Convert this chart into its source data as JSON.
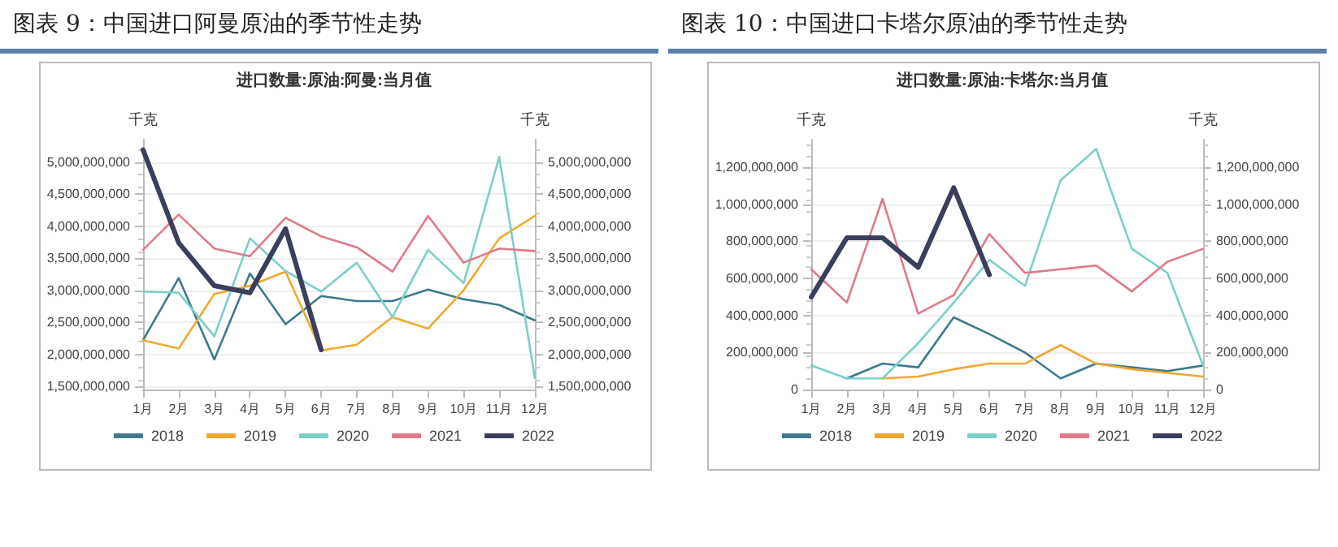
{
  "chart_data": [
    {
      "type": "line",
      "title": "图表 9：中国进口阿曼原油的季节性走势",
      "subtitle": "进口数量:原油:阿曼:当月值",
      "ylabel": "千克",
      "y2label": "千克",
      "categories": [
        "1月",
        "2月",
        "3月",
        "4月",
        "5月",
        "6月",
        "7月",
        "8月",
        "9月",
        "10月",
        "11月",
        "12月"
      ],
      "ylim": [
        1450000000,
        5350000000
      ],
      "yticks": [
        {
          "value": 1500000000,
          "label": "1,500,000,000"
        },
        {
          "value": 2000000000,
          "label": "2,000,000,000"
        },
        {
          "value": 2500000000,
          "label": "2,500,000,000"
        },
        {
          "value": 3000000000,
          "label": "3,000,000,000"
        },
        {
          "value": 3500000000,
          "label": "3,500,000,000"
        },
        {
          "value": 4000000000,
          "label": "4,000,000,000"
        },
        {
          "value": 4500000000,
          "label": "4,500,000,000"
        },
        {
          "value": 5000000000,
          "label": "5,000,000,000"
        }
      ],
      "y2lim": [
        1450000000,
        5350000000
      ],
      "y2ticks": [
        {
          "value": 1500000000,
          "label": "1,500,000,000"
        },
        {
          "value": 2000000000,
          "label": "2,000,000,000"
        },
        {
          "value": 2500000000,
          "label": "2,500,000,000"
        },
        {
          "value": 3000000000,
          "label": "3,000,000,000"
        },
        {
          "value": 3500000000,
          "label": "3,500,000,000"
        },
        {
          "value": 4000000000,
          "label": "4,000,000,000"
        },
        {
          "value": 4500000000,
          "label": "4,500,000,000"
        },
        {
          "value": 5000000000,
          "label": "5,000,000,000"
        }
      ],
      "grid": "y",
      "legend": "bottom",
      "marker": "none",
      "series": [
        {
          "name": "2018",
          "color": "#3e7a8c",
          "values": [
            2220000000,
            3190000000,
            1920000000,
            3260000000,
            2470000000,
            2910000000,
            2830000000,
            2830000000,
            3010000000,
            2860000000,
            2770000000,
            2530000000
          ]
        },
        {
          "name": "2019",
          "color": "#f0a830",
          "values": [
            2220000000,
            2090000000,
            2940000000,
            3070000000,
            3290000000,
            2060000000,
            2150000000,
            2580000000,
            2400000000,
            3000000000,
            3810000000,
            4160000000
          ]
        },
        {
          "name": "2020",
          "color": "#7ccfc8",
          "values": [
            2980000000,
            2960000000,
            2280000000,
            3810000000,
            3300000000,
            2980000000,
            3430000000,
            2580000000,
            3630000000,
            3110000000,
            5080000000,
            1630000000
          ]
        },
        {
          "name": "2021",
          "color": "#e07a8a",
          "values": [
            3630000000,
            4180000000,
            3650000000,
            3530000000,
            4130000000,
            3840000000,
            3670000000,
            3290000000,
            4160000000,
            3430000000,
            3650000000,
            3610000000
          ]
        },
        {
          "name": "2022",
          "color": "#3a3f5c",
          "values": [
            5190000000,
            3740000000,
            3070000000,
            2960000000,
            3960000000,
            2070000000,
            null,
            null,
            null,
            null,
            null,
            null
          ]
        }
      ]
    },
    {
      "type": "line",
      "title": "图表 10：中国进口卡塔尔原油的季节性走势",
      "subtitle": "进口数量:原油:卡塔尔:当月值",
      "ylabel": "千克",
      "y2label": "千克",
      "categories": [
        "1月",
        "2月",
        "3月",
        "4月",
        "5月",
        "6月",
        "7月",
        "8月",
        "9月",
        "10月",
        "11月",
        "12月"
      ],
      "ylim": [
        0,
        1350000000
      ],
      "yticks": [
        0,
        {
          "value": 200000000,
          "label": "200,000,000"
        },
        {
          "value": 400000000,
          "label": "400,000,000"
        },
        {
          "value": 600000000,
          "label": "600,000,000"
        },
        {
          "value": 800000000,
          "label": "800,000,000"
        },
        {
          "value": 1000000000,
          "label": "1,000,000,000"
        },
        {
          "value": 1200000000,
          "label": "1,200,000,000"
        }
      ],
      "y2lim": [
        0,
        1350000000
      ],
      "y2ticks": [
        0,
        {
          "value": 200000000,
          "label": "200,000,000"
        },
        {
          "value": 400000000,
          "label": "400,000,000"
        },
        {
          "value": 600000000,
          "label": "600,000,000"
        },
        {
          "value": 800000000,
          "label": "800,000,000"
        },
        {
          "value": 1000000000,
          "label": "1,000,000,000"
        },
        {
          "value": 1200000000,
          "label": "1,200,000,000"
        }
      ],
      "grid": "y",
      "legend": "bottom",
      "marker": "none",
      "series": [
        {
          "name": "2018",
          "color": "#3e7a8c",
          "values": [
            null,
            60000000,
            140000000,
            120000000,
            390000000,
            300000000,
            200000000,
            60000000,
            140000000,
            120000000,
            100000000,
            130000000
          ]
        },
        {
          "name": "2019",
          "color": "#f0a830",
          "values": [
            null,
            null,
            60000000,
            70000000,
            110000000,
            140000000,
            140000000,
            240000000,
            140000000,
            110000000,
            90000000,
            70000000
          ]
        },
        {
          "name": "2020",
          "color": "#7ccfc8",
          "values": [
            130000000,
            60000000,
            60000000,
            250000000,
            470000000,
            700000000,
            560000000,
            1130000000,
            1300000000,
            760000000,
            630000000,
            130000000
          ]
        },
        {
          "name": "2021",
          "color": "#e07a8a",
          "values": [
            650000000,
            470000000,
            1030000000,
            410000000,
            510000000,
            840000000,
            630000000,
            650000000,
            670000000,
            530000000,
            690000000,
            760000000
          ]
        },
        {
          "name": "2022",
          "color": "#3a3f5c",
          "values": [
            500000000,
            820000000,
            820000000,
            660000000,
            1090000000,
            620000000,
            null,
            null,
            null,
            null,
            null,
            null
          ]
        }
      ]
    }
  ]
}
